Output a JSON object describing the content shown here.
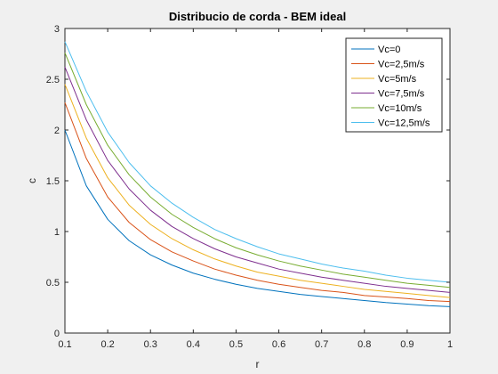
{
  "chart_data": {
    "type": "line",
    "title": "Distribucio de corda - BEM ideal",
    "xlabel": "r",
    "ylabel": "c",
    "xlim": [
      0.1,
      1
    ],
    "ylim": [
      0,
      3
    ],
    "xticks": [
      0.1,
      0.2,
      0.3,
      0.4,
      0.5,
      0.6,
      0.7,
      0.8,
      0.9,
      1
    ],
    "xtick_labels": [
      "0.1",
      "0.2",
      "0.3",
      "0.4",
      "0.5",
      "0.6",
      "0.7",
      "0.8",
      "0.9",
      "1"
    ],
    "yticks": [
      0,
      0.5,
      1,
      1.5,
      2,
      2.5,
      3
    ],
    "ytick_labels": [
      "0",
      "0.5",
      "1",
      "1.5",
      "2",
      "2.5",
      "3"
    ],
    "grid": false,
    "legend_position": "top-right",
    "x": [
      0.1,
      0.15,
      0.2,
      0.25,
      0.3,
      0.35,
      0.4,
      0.45,
      0.5,
      0.55,
      0.6,
      0.65,
      0.7,
      0.75,
      0.8,
      0.85,
      0.9,
      0.95,
      1.0
    ],
    "series": [
      {
        "name": "Vc=0",
        "color": "#0072BD",
        "values": [
          2.0,
          1.45,
          1.12,
          0.91,
          0.77,
          0.67,
          0.59,
          0.53,
          0.48,
          0.44,
          0.41,
          0.38,
          0.36,
          0.34,
          0.32,
          0.3,
          0.285,
          0.27,
          0.26
        ]
      },
      {
        "name": "Vc=2,5m/s",
        "color": "#D95319",
        "values": [
          2.27,
          1.72,
          1.34,
          1.09,
          0.92,
          0.8,
          0.71,
          0.63,
          0.57,
          0.52,
          0.48,
          0.45,
          0.42,
          0.4,
          0.37,
          0.355,
          0.34,
          0.32,
          0.31
        ]
      },
      {
        "name": "Vc=5m/s",
        "color": "#EDB120",
        "values": [
          2.45,
          1.92,
          1.53,
          1.26,
          1.07,
          0.93,
          0.82,
          0.73,
          0.66,
          0.6,
          0.56,
          0.52,
          0.49,
          0.46,
          0.43,
          0.41,
          0.39,
          0.37,
          0.35
        ]
      },
      {
        "name": "Vc=7,5m/s",
        "color": "#7E2F8E",
        "values": [
          2.62,
          2.1,
          1.7,
          1.42,
          1.21,
          1.05,
          0.93,
          0.83,
          0.75,
          0.69,
          0.63,
          0.59,
          0.55,
          0.52,
          0.49,
          0.46,
          0.44,
          0.42,
          0.4
        ]
      },
      {
        "name": "Vc=10m/s",
        "color": "#77AC30",
        "values": [
          2.76,
          2.25,
          1.85,
          1.56,
          1.34,
          1.17,
          1.04,
          0.93,
          0.84,
          0.77,
          0.71,
          0.66,
          0.62,
          0.58,
          0.55,
          0.52,
          0.49,
          0.47,
          0.45
        ]
      },
      {
        "name": "Vc=12,5m/s",
        "color": "#4DBEEE",
        "values": [
          2.87,
          2.38,
          1.98,
          1.68,
          1.45,
          1.28,
          1.14,
          1.02,
          0.93,
          0.85,
          0.78,
          0.73,
          0.68,
          0.64,
          0.61,
          0.57,
          0.54,
          0.52,
          0.5
        ]
      }
    ]
  }
}
